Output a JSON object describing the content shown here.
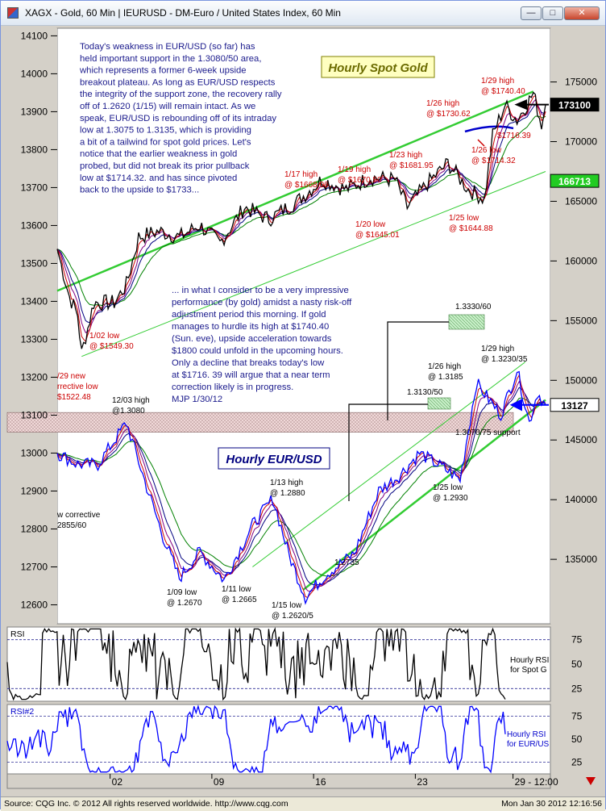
{
  "window": {
    "title": "XAGX - Gold, 60 Min   |   IEURUSD - DM-Euro / United States Index, 60 Min",
    "buttons": {
      "minimize": "—",
      "maximize": "□",
      "close": "✕"
    }
  },
  "colors": {
    "gold_price": "#000000",
    "eurusd_price": "#0000ff",
    "channel": "#33cc33",
    "ma_red": "#cc0000",
    "ma_purple": "#800080",
    "ma_navy": "#000080",
    "ma_green": "#008000",
    "note_text": "#1a1a8c",
    "annotation_red": "#cc0000",
    "support_band": "#f0d8d8",
    "gold_label_bg": "#ffffc0",
    "gold_label_text": "#6b6b00",
    "rsi_bg": "#ffffff"
  },
  "chart_data": [
    {
      "id": "main",
      "type": "line",
      "title": "Hourly Spot Gold",
      "title2": "Hourly EUR/USD",
      "left_axis": {
        "ylim": [
          12550,
          14120
        ],
        "ticks": [
          "14100",
          "14000",
          "13900",
          "13800",
          "13700",
          "13600",
          "13500",
          "13400",
          "13300",
          "13200",
          "13100",
          "13000",
          "12900",
          "12800",
          "12700",
          "12600"
        ],
        "tick_values": [
          14100,
          14000,
          13900,
          13800,
          13700,
          13600,
          13500,
          13400,
          13300,
          13200,
          13100,
          13000,
          12900,
          12800,
          12700,
          12600
        ]
      },
      "right_axis": {
        "ylim": [
          129600,
          179500
        ],
        "ticks": [
          "175000",
          "170000",
          "165000",
          "160000",
          "155000",
          "150000",
          "145000",
          "140000",
          "135000"
        ],
        "tick_values": [
          175000,
          170000,
          165000,
          160000,
          155000,
          150000,
          145000,
          140000,
          135000
        ]
      },
      "x_ticks": [
        "02",
        "09",
        "16",
        "23",
        "29 - 12:00"
      ],
      "x_tick_index": [
        26,
        76,
        126,
        176,
        224
      ],
      "x_count": 240,
      "price_boxes": [
        {
          "label": "173100",
          "axis": "right",
          "value": 173100
        },
        {
          "label": "166713",
          "axis": "right",
          "value": 166713
        },
        {
          "label": "13127",
          "axis": "left",
          "value": 13127
        }
      ],
      "series": [
        {
          "name": "Gold",
          "axis": "right",
          "keypoints": [
            [
              0,
              161000
            ],
            [
              6,
              157000
            ],
            [
              10,
              155500
            ],
            [
              12,
              152250
            ],
            [
              18,
              156500
            ],
            [
              28,
              156500
            ],
            [
              34,
              158000
            ],
            [
              40,
              162000
            ],
            [
              50,
              162500
            ],
            [
              60,
              162000
            ],
            [
              70,
              163000
            ],
            [
              80,
              161500
            ],
            [
              92,
              164500
            ],
            [
              104,
              163500
            ],
            [
              118,
              165000
            ],
            [
              130,
              166800
            ],
            [
              142,
              166000
            ],
            [
              154,
              167000
            ],
            [
              166,
              166800
            ],
            [
              172,
              164500
            ],
            [
              182,
              166500
            ],
            [
              192,
              168200
            ],
            [
              202,
              166000
            ],
            [
              210,
              165200
            ],
            [
              214,
              170500
            ],
            [
              220,
              173062
            ],
            [
              226,
              171800
            ],
            [
              234,
              174040
            ],
            [
              238,
              171432
            ],
            [
              240,
              173100
            ]
          ]
        },
        {
          "name": "EUR/USD",
          "axis": "left",
          "keypoints": [
            [
              0,
              13000
            ],
            [
              10,
              12970
            ],
            [
              20,
              12970
            ],
            [
              34,
              13080
            ],
            [
              44,
              12910
            ],
            [
              52,
              12780
            ],
            [
              60,
              12670
            ],
            [
              70,
              12740
            ],
            [
              82,
              12665
            ],
            [
              96,
              12810
            ],
            [
              106,
              12880
            ],
            [
              114,
              12730
            ],
            [
              122,
              12620
            ],
            [
              132,
              12680
            ],
            [
              146,
              12735
            ],
            [
              158,
              12900
            ],
            [
              168,
              12940
            ],
            [
              178,
              13000
            ],
            [
              190,
              12960
            ],
            [
              198,
              12930
            ],
            [
              206,
              13185
            ],
            [
              218,
              13100
            ],
            [
              226,
              13220
            ],
            [
              232,
              13080
            ],
            [
              236,
              13160
            ],
            [
              240,
              13127
            ]
          ]
        }
      ],
      "annotations_gold": [
        {
          "text": "1/29 high",
          "text2": "@ $1740.40"
        },
        {
          "text": "1/26 high",
          "text2": "@ $1730.62"
        },
        {
          "text": "1/26 low",
          "text2": "@ $1714.32"
        },
        {
          "text": "$1716.39"
        },
        {
          "text": "1/23 high",
          "text2": "@ $1681.95"
        },
        {
          "text": "1/19 high",
          "text2": "@ $1670.50"
        },
        {
          "text": "1/17 high",
          "text2": "@ $1668.06"
        },
        {
          "text": "1/20 low",
          "text2": "@ $1645.01"
        },
        {
          "text": "1/25 low",
          "text2": "@ $1644.88"
        },
        {
          "text": "1/02 low",
          "text2": "@ $1549.30"
        },
        {
          "text": "/29 new",
          "text2": "rrective low",
          "text3": "$1522.48"
        }
      ],
      "annotations_eur": [
        {
          "text": "1/29 high",
          "text2": "@ 1.3230/35"
        },
        {
          "text": "1/26 high",
          "text2": "@ 1.3185"
        },
        {
          "text": "1.3330/60"
        },
        {
          "text": "1.3130/50"
        },
        {
          "text": "1.3070/75 support"
        },
        {
          "text": "12/03 high",
          "text2": "@1.3080"
        },
        {
          "text": "1/13 high",
          "text2": "@ 1.2880"
        },
        {
          "text": "1/25 low",
          "text2": "@ 1.2930"
        },
        {
          "text": "1.2735"
        },
        {
          "text": "1/09 low",
          "text2": "@ 1.2670"
        },
        {
          "text": "1/11 low",
          "text2": "@ 1.2665"
        },
        {
          "text": "1/15 low",
          "text2": "@ 1.2620/5"
        },
        {
          "text": "w corrective",
          "text2": "2855/60"
        }
      ]
    },
    {
      "id": "rsi1",
      "type": "line",
      "title": "RSI",
      "ylim": [
        12,
        88
      ],
      "ticks": [
        "75",
        "50",
        "25"
      ],
      "tick_values": [
        75,
        50,
        25
      ],
      "side_label": [
        "Hourly RSI",
        "for Spot G"
      ]
    },
    {
      "id": "rsi2",
      "type": "line",
      "title": "RSI#2",
      "ylim": [
        12,
        88
      ],
      "ticks": [
        "75",
        "50",
        "25"
      ],
      "tick_values": [
        75,
        50,
        25
      ],
      "side_label": [
        "Hourly RSI",
        "for EUR/US"
      ]
    }
  ],
  "notes": {
    "top": [
      "Today's weakness in EUR/USD (so far) has",
      "held important support in the 1.3080/50 area,",
      "which represents a former 6-week upside",
      "breakout plateau. As long as EUR/USD respects",
      "the integrity of the support zone, the recovery rally",
      "off of 1.2620 (1/15) will remain intact. As we",
      "speak, EUR/USD is rebounding off of its intraday",
      "low at 1.3075 to 1.3135, which is providing",
      "a bit of a tailwind for spot gold prices. Let's",
      "notice that the earlier weakness in gold",
      "probed, but did not break its prior pullback",
      "low at $1714.32. and has since pivoted",
      "back to the upside to $1733..."
    ],
    "middle": [
      "... in what I consider to be a very impressive",
      "performance (by gold) amidst a nasty risk-off",
      "adjustment period this morning. If gold",
      "manages to hurdle its high at $1740.40",
      "(Sun. eve),  upside acceleration towards",
      "$1800 could unfold in the upcoming hours.",
      "Only a decline that breaks today's low",
      "at $1716. 39 will argue that a near term",
      "correction likely is in progress.",
      "MJP  1/30/12"
    ]
  },
  "statusbar": {
    "left": "Source: CQG Inc. © 2012 All rights reserved worldwide. http://www.cqg.com",
    "right": "Mon Jan 30 2012 12:16:56"
  }
}
